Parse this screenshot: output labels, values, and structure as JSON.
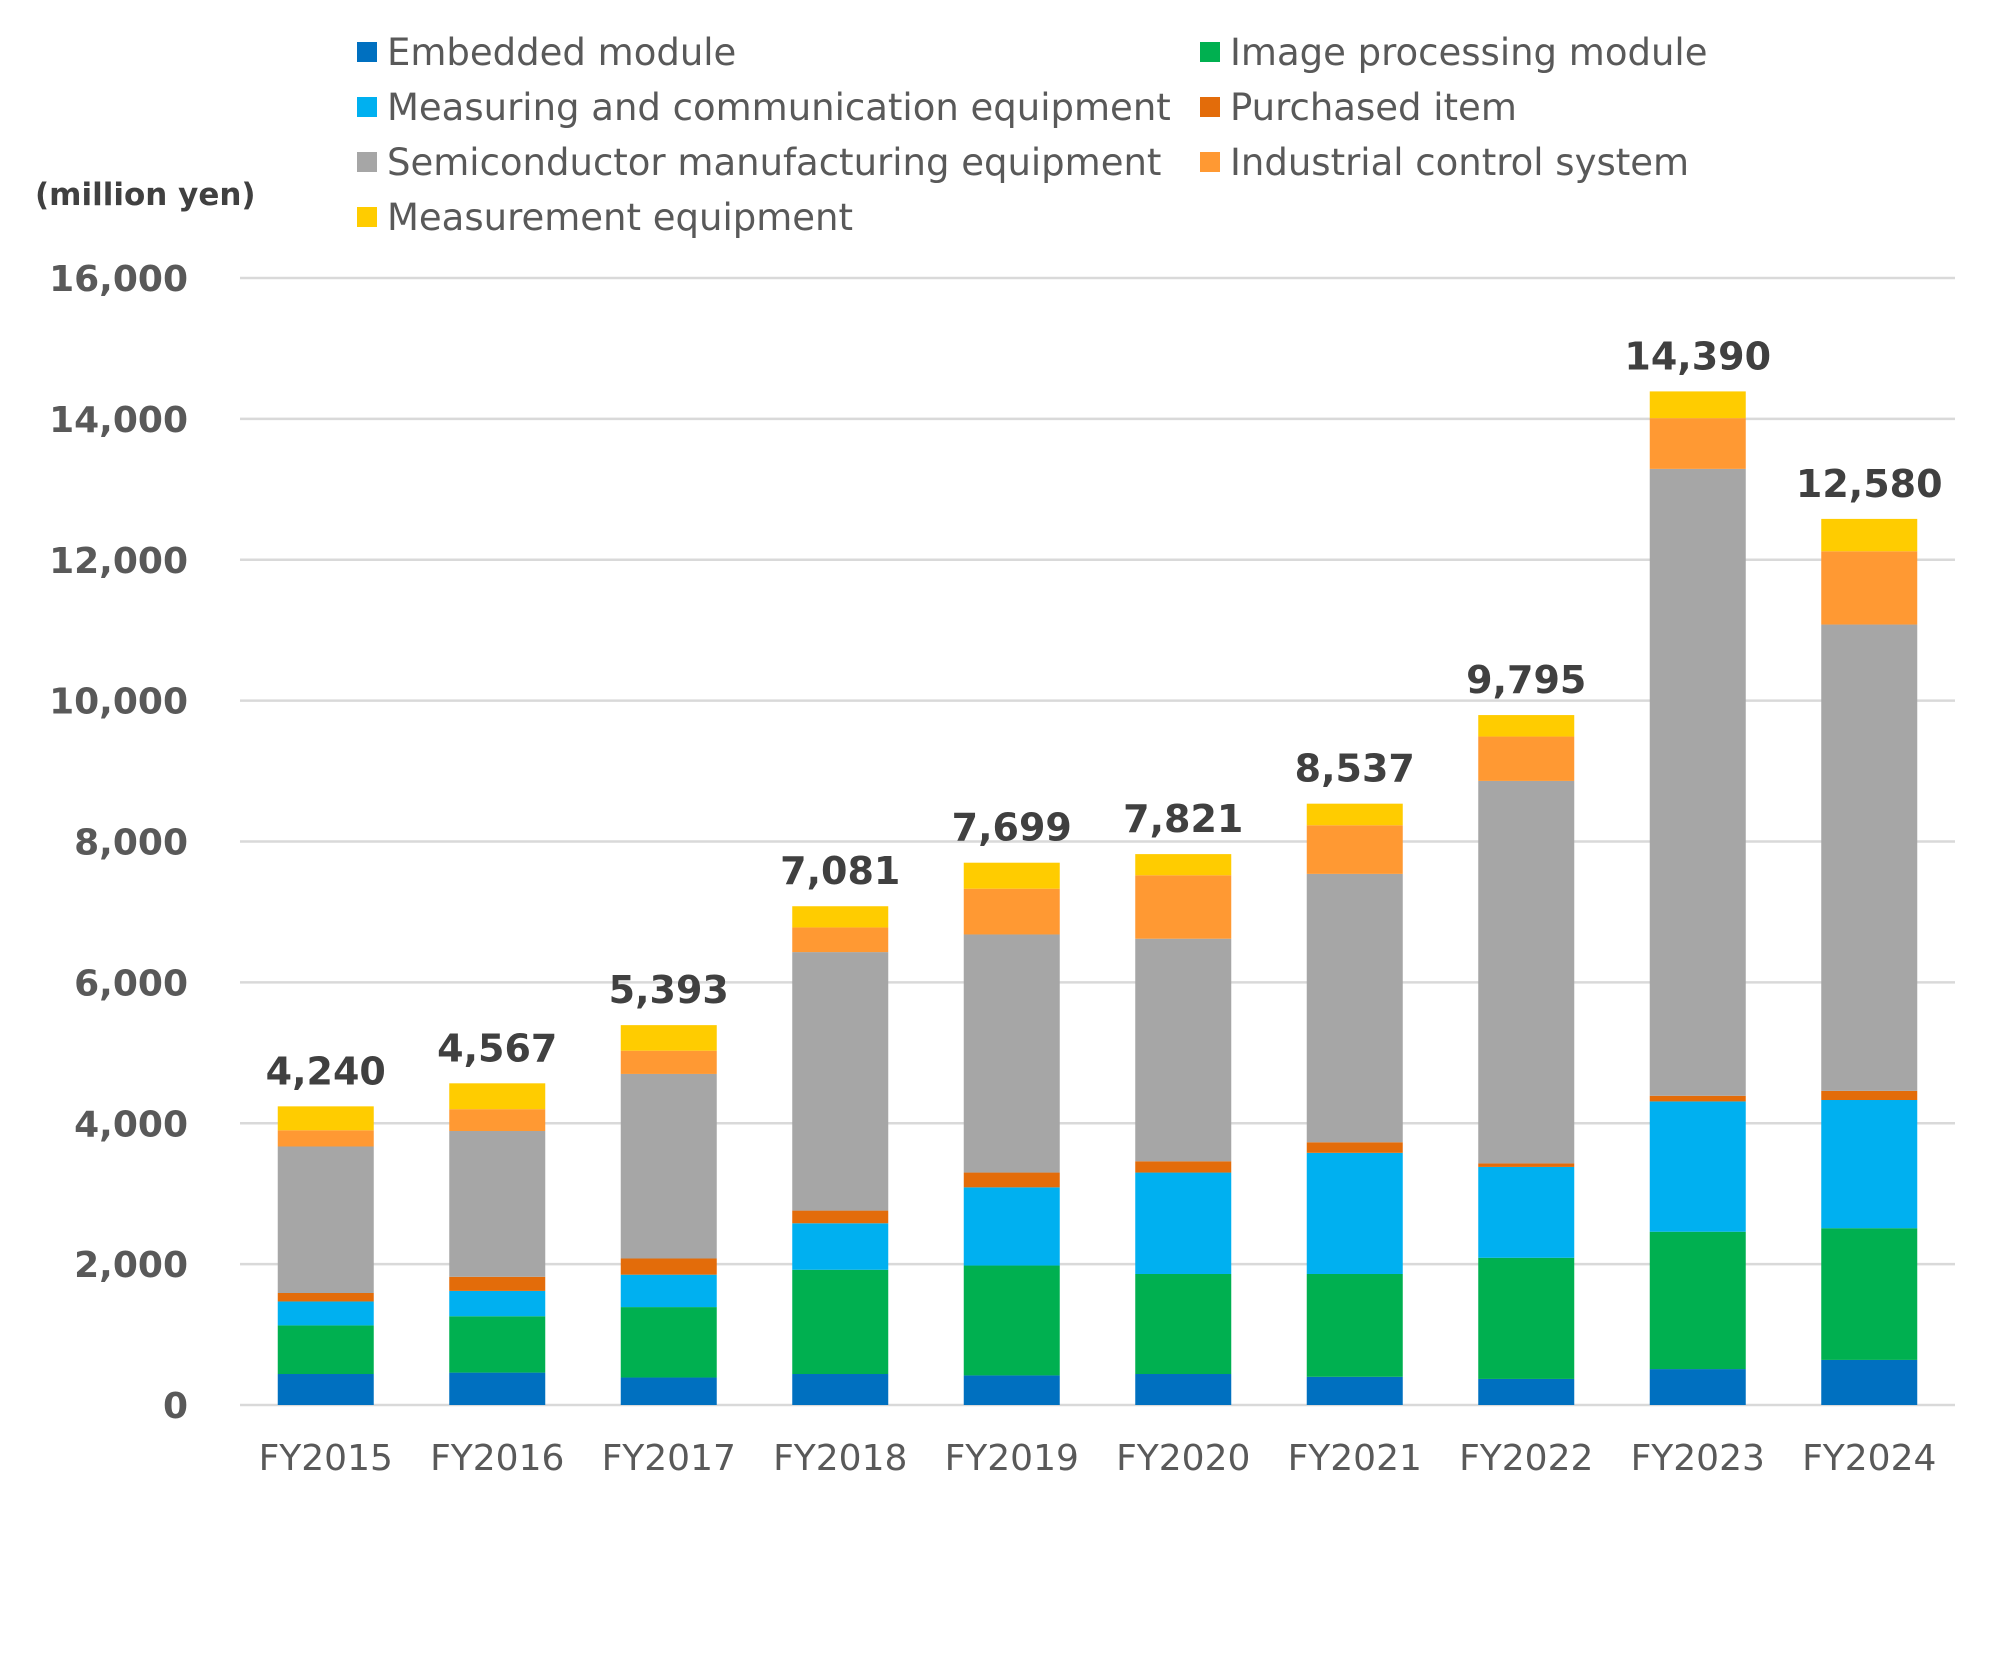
{
  "chart_data": {
    "type": "bar",
    "stacked": true,
    "ylabel": "(million yen)",
    "ylim": [
      0,
      16000
    ],
    "ytick_values": [
      0,
      2000,
      4000,
      6000,
      8000,
      10000,
      12000,
      14000,
      16000
    ],
    "ytick_labels": [
      "0",
      "2,000",
      "4,000",
      "6,000",
      "8,000",
      "10,000",
      "12,000",
      "14,000",
      "16,000"
    ],
    "grid": true,
    "legend_position": "top",
    "categories": [
      "FY2015",
      "FY2016",
      "FY2017",
      "FY2018",
      "FY2019",
      "FY2020",
      "FY2021",
      "FY2022",
      "FY2023",
      "FY2024"
    ],
    "series": [
      {
        "name": "Embedded module",
        "color": "#0070c0",
        "values": [
          440,
          460,
          390,
          440,
          420,
          440,
          400,
          370,
          510,
          640
        ]
      },
      {
        "name": "Image processing module",
        "color": "#00b050",
        "values": [
          690,
          800,
          1000,
          1480,
          1560,
          1420,
          1460,
          1720,
          1950,
          1870
        ]
      },
      {
        "name": "Measuring and communication equipment",
        "color": "#00b0f0",
        "values": [
          340,
          360,
          460,
          660,
          1110,
          1440,
          1720,
          1290,
          1850,
          1820
        ]
      },
      {
        "name": "Purchased item",
        "color": "#e36c0a",
        "values": [
          120,
          200,
          230,
          180,
          210,
          160,
          150,
          50,
          80,
          130
        ]
      },
      {
        "name": "Semiconductor manufacturing equipment",
        "color": "#a6a6a6",
        "values": [
          2080,
          2070,
          2620,
          3670,
          3380,
          3160,
          3810,
          5430,
          8900,
          6620
        ]
      },
      {
        "name": "Industrial control system",
        "color": "#ff9933",
        "values": [
          230,
          310,
          330,
          350,
          650,
          900,
          690,
          630,
          720,
          1040
        ]
      },
      {
        "name": "Measurement equipment",
        "color": "#ffcc00",
        "values": [
          340,
          367,
          363,
          301,
          369,
          301,
          307,
          305,
          380,
          460
        ]
      }
    ],
    "totals": [
      4240,
      4567,
      5393,
      7081,
      7699,
      7821,
      8537,
      9795,
      14390,
      12580
    ],
    "total_labels": [
      "4,240",
      "4,567",
      "5,393",
      "7,081",
      "7,699",
      "7,821",
      "8,537",
      "9,795",
      "14,390",
      "12,580"
    ]
  }
}
